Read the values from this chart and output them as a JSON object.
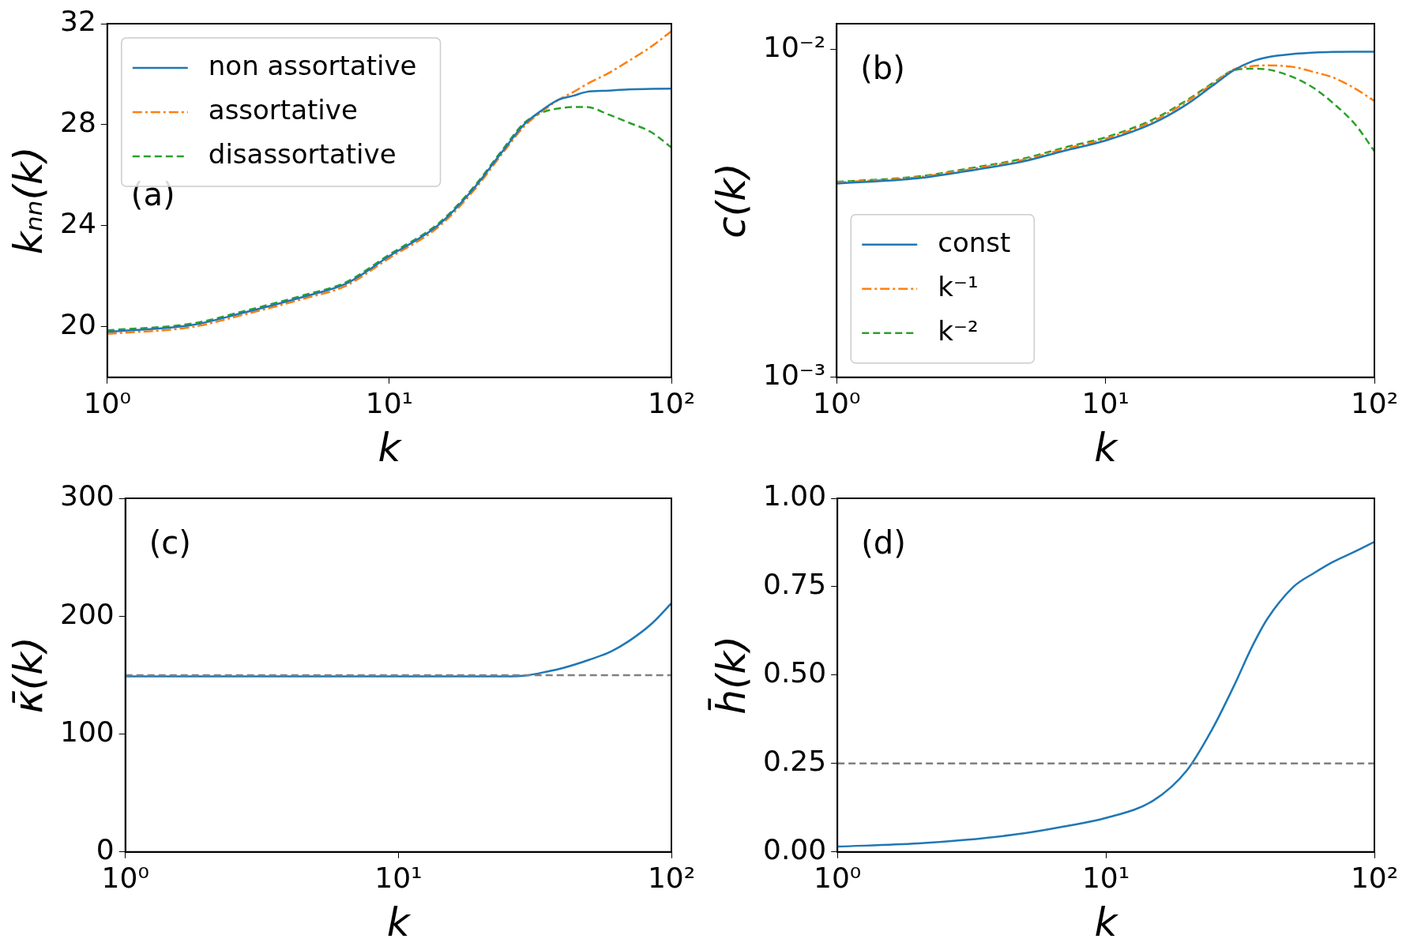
{
  "chart_data": [
    {
      "type": "line",
      "xlabel": "k",
      "ylabel": "kₙₙ(k)",
      "log": "x",
      "xlim": [
        1,
        100
      ],
      "ylim": [
        18,
        32
      ],
      "xticks": [
        {
          "value": 1,
          "label": "10⁰"
        },
        {
          "value": 10,
          "label": "10¹"
        },
        {
          "value": 100,
          "label": "10²"
        }
      ],
      "yticks": [
        20,
        24,
        28,
        32
      ],
      "x": [
        1,
        2,
        3,
        5,
        7,
        10,
        15,
        20,
        25,
        30,
        35,
        40,
        45,
        50,
        60,
        70,
        85,
        100
      ],
      "legend": "top left",
      "annotations": [
        "(a)"
      ],
      "series": [
        {
          "name": "non assortative",
          "color": "#1f77b4",
          "line_style": "solid",
          "values": [
            19.8,
            20.07,
            20.54,
            21.2,
            21.7,
            22.8,
            24.05,
            25.5,
            26.9,
            28,
            28.6,
            29.0,
            29.15,
            29.3,
            29.35,
            29.4,
            29.42,
            29.43
          ]
        },
        {
          "name": "assortative",
          "color": "#ff7f0e",
          "line_style": "dashdot",
          "values": [
            19.72,
            19.99,
            20.46,
            21.12,
            21.62,
            22.72,
            23.97,
            25.42,
            26.82,
            27.92,
            28.55,
            29.0,
            29.3,
            29.6,
            30.05,
            30.5,
            31.1,
            31.7
          ]
        },
        {
          "name": "disassortative",
          "color": "#2ca02c",
          "line_style": "dashed",
          "values": [
            19.86,
            20.13,
            20.6,
            21.26,
            21.76,
            22.86,
            24.11,
            25.56,
            26.96,
            28.06,
            28.5,
            28.65,
            28.7,
            28.7,
            28.4,
            28.1,
            27.7,
            27.1
          ]
        }
      ]
    },
    {
      "type": "line",
      "xlabel": "k",
      "ylabel": "c(k)",
      "log": "xy",
      "xlim": [
        1,
        100
      ],
      "ylim": [
        0.001,
        0.012
      ],
      "xticks": [
        {
          "value": 1,
          "label": "10⁰"
        },
        {
          "value": 10,
          "label": "10¹"
        },
        {
          "value": 100,
          "label": "10²"
        }
      ],
      "yticks": [
        {
          "value": 0.001,
          "label": "10⁻³"
        },
        {
          "value": 0.01,
          "label": "10⁻²"
        }
      ],
      "x": [
        1,
        2,
        3,
        5,
        7,
        10,
        15,
        20,
        25,
        30,
        35,
        40,
        50,
        60,
        70,
        85,
        100
      ],
      "legend": "bottom left",
      "annotations": [
        "(b)"
      ],
      "series": [
        {
          "name": "const",
          "color": "#1f77b4",
          "line_style": "solid",
          "values": [
            0.0039,
            0.00405,
            0.00425,
            0.00457,
            0.00491,
            0.00528,
            0.00596,
            0.0068,
            0.00776,
            0.00865,
            0.0092,
            0.00948,
            0.0097,
            0.0098,
            0.00984,
            0.00985,
            0.00985
          ]
        },
        {
          "name": "k⁻¹",
          "color": "#ff7f0e",
          "line_style": "dashdot",
          "values": [
            0.00393,
            0.00408,
            0.00429,
            0.00462,
            0.00497,
            0.00535,
            0.00605,
            0.00693,
            0.00785,
            0.0087,
            0.0089,
            0.00895,
            0.00885,
            0.00853,
            0.00823,
            0.0076,
            0.00697
          ]
        },
        {
          "name": "k⁻²",
          "color": "#2ca02c",
          "line_style": "dashed",
          "values": [
            0.00395,
            0.0041,
            0.00432,
            0.00466,
            0.00502,
            0.0054,
            0.00612,
            0.007,
            0.0079,
            0.00865,
            0.00875,
            0.0087,
            0.00823,
            0.0076,
            0.00688,
            0.0059,
            0.0049
          ]
        }
      ]
    },
    {
      "type": "line",
      "xlabel": "k",
      "ylabel": "κ̄(k)",
      "log": "x",
      "xlim": [
        1,
        100
      ],
      "ylim": [
        0,
        300
      ],
      "xticks": [
        {
          "value": 1,
          "label": "10⁰"
        },
        {
          "value": 10,
          "label": "10¹"
        },
        {
          "value": 100,
          "label": "10²"
        }
      ],
      "yticks": [
        0,
        100,
        200,
        300
      ],
      "x": [
        1,
        2,
        5,
        10,
        20,
        25,
        30,
        35,
        40,
        50,
        60,
        70,
        85,
        100
      ],
      "annotations": [
        "(c)"
      ],
      "ref_lines": [
        {
          "axis": "y",
          "value": 150,
          "color": "#808080",
          "line_style": "dashed"
        }
      ],
      "series": [
        {
          "color": "#1f77b4",
          "values": [
            149,
            149,
            149,
            149,
            149,
            149,
            150,
            153,
            156,
            163,
            170,
            179,
            194,
            211
          ]
        }
      ]
    },
    {
      "type": "line",
      "xlabel": "k",
      "ylabel": "h̄(k)",
      "log": "x",
      "xlim": [
        1,
        100
      ],
      "ylim": [
        0,
        1
      ],
      "xticks": [
        {
          "value": 1,
          "label": "10⁰"
        },
        {
          "value": 10,
          "label": "10¹"
        },
        {
          "value": 100,
          "label": "10²"
        }
      ],
      "yticks": [
        {
          "value": 0,
          "label": "0.00"
        },
        {
          "value": 0.25,
          "label": "0.25"
        },
        {
          "value": 0.5,
          "label": "0.50"
        },
        {
          "value": 0.75,
          "label": "0.75"
        },
        {
          "value": 1,
          "label": "1.00"
        }
      ],
      "x": [
        1,
        2,
        3,
        5,
        7,
        10,
        15,
        20,
        25,
        30,
        35,
        40,
        50,
        60,
        70,
        85,
        100
      ],
      "annotations": [
        "(d)"
      ],
      "ref_lines": [
        {
          "axis": "y",
          "value": 0.25,
          "color": "#808080",
          "line_style": "dashed"
        }
      ],
      "series": [
        {
          "color": "#1f77b4",
          "values": [
            0.015,
            0.024,
            0.034,
            0.053,
            0.072,
            0.096,
            0.145,
            0.23,
            0.35,
            0.47,
            0.58,
            0.66,
            0.75,
            0.79,
            0.82,
            0.85,
            0.877
          ]
        }
      ]
    }
  ]
}
